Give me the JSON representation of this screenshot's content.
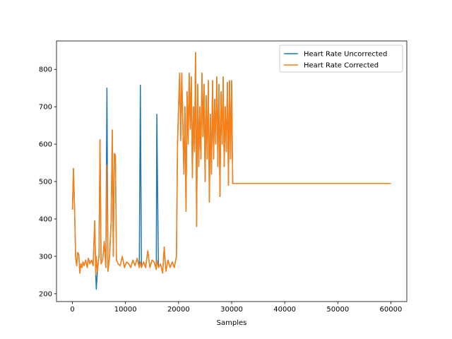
{
  "chart_data": {
    "type": "line",
    "x_label": "Samples",
    "x": [
      0,
      200,
      400,
      600,
      800,
      1000,
      1200,
      1400,
      1600,
      1800,
      2000,
      2200,
      2500,
      2800,
      3000,
      3300,
      3600,
      3900,
      4200,
      4400,
      4500,
      4700,
      5000,
      5200,
      5400,
      5700,
      6000,
      6300,
      6500,
      6700,
      7000,
      7300,
      7500,
      7700,
      7900,
      8100,
      8300,
      8600,
      9000,
      9400,
      9800,
      10200,
      10600,
      11000,
      11400,
      11800,
      12200,
      12600,
      12800,
      13000,
      13400,
      13800,
      14200,
      14600,
      15000,
      15400,
      15800,
      15900,
      16200,
      16600,
      17000,
      17300,
      17600,
      18000,
      18400,
      18800,
      19200,
      19600,
      19800,
      20000,
      20200,
      20400,
      20600,
      20800,
      21000,
      21200,
      21400,
      21600,
      21800,
      22000,
      22200,
      22400,
      22600,
      22800,
      23000,
      23200,
      23400,
      23600,
      23800,
      24000,
      24200,
      24400,
      24600,
      24800,
      25000,
      25200,
      25400,
      25600,
      25800,
      26000,
      26200,
      26400,
      26600,
      26800,
      27000,
      27200,
      27400,
      27600,
      27800,
      28000,
      28200,
      28400,
      28600,
      28800,
      29000,
      29200,
      29400,
      29600,
      29800,
      30000,
      30200,
      60000
    ],
    "series": [
      {
        "name": "Heart Rate Uncorrected",
        "color": "#1f77b4",
        "values": [
          425,
          535,
          430,
          300,
          275,
          310,
          305,
          255,
          280,
          270,
          285,
          275,
          290,
          270,
          295,
          280,
          290,
          275,
          395,
          250,
          212,
          260,
          300,
          612,
          280,
          290,
          340,
          270,
          750,
          260,
          300,
          395,
          638,
          300,
          575,
          570,
          290,
          280,
          275,
          300,
          270,
          285,
          280,
          270,
          290,
          275,
          295,
          270,
          758,
          270,
          285,
          270,
          315,
          270,
          290,
          285,
          265,
          680,
          270,
          280,
          255,
          325,
          260,
          290,
          270,
          285,
          270,
          300,
          600,
          700,
          790,
          610,
          790,
          660,
          520,
          700,
          420,
          740,
          600,
          790,
          640,
          780,
          510,
          700,
          580,
          845,
          380,
          760,
          540,
          700,
          560,
          790,
          620,
          760,
          500,
          730,
          560,
          770,
          445,
          680,
          520,
          770,
          560,
          720,
          600,
          780,
          540,
          760,
          460,
          740,
          600,
          780,
          540,
          700,
          580,
          765,
          490,
          770,
          560,
          770,
          495,
          495
        ]
      },
      {
        "name": "Heart Rate Corrected",
        "color": "#ff7f0e",
        "values": [
          425,
          535,
          430,
          300,
          275,
          310,
          305,
          255,
          280,
          270,
          285,
          275,
          290,
          270,
          295,
          280,
          290,
          275,
          395,
          250,
          300,
          260,
          300,
          612,
          280,
          290,
          340,
          270,
          545,
          260,
          300,
          395,
          638,
          300,
          575,
          570,
          290,
          280,
          275,
          300,
          270,
          285,
          280,
          270,
          290,
          275,
          295,
          270,
          285,
          270,
          285,
          270,
          315,
          270,
          290,
          285,
          265,
          290,
          270,
          280,
          255,
          325,
          260,
          290,
          270,
          285,
          270,
          300,
          600,
          700,
          790,
          610,
          790,
          660,
          520,
          700,
          420,
          740,
          600,
          790,
          640,
          780,
          510,
          700,
          580,
          845,
          380,
          760,
          540,
          700,
          560,
          790,
          620,
          760,
          500,
          730,
          560,
          770,
          445,
          680,
          520,
          770,
          560,
          720,
          600,
          780,
          540,
          760,
          460,
          740,
          600,
          780,
          540,
          700,
          580,
          765,
          490,
          770,
          560,
          770,
          495,
          495
        ]
      }
    ],
    "xlim": [
      -3000,
      63000
    ],
    "ylim": [
      179,
      876
    ],
    "xticks": [
      0,
      10000,
      20000,
      30000,
      40000,
      50000,
      60000
    ],
    "yticks": [
      200,
      300,
      400,
      500,
      600,
      700,
      800
    ],
    "legend": "upper right"
  }
}
